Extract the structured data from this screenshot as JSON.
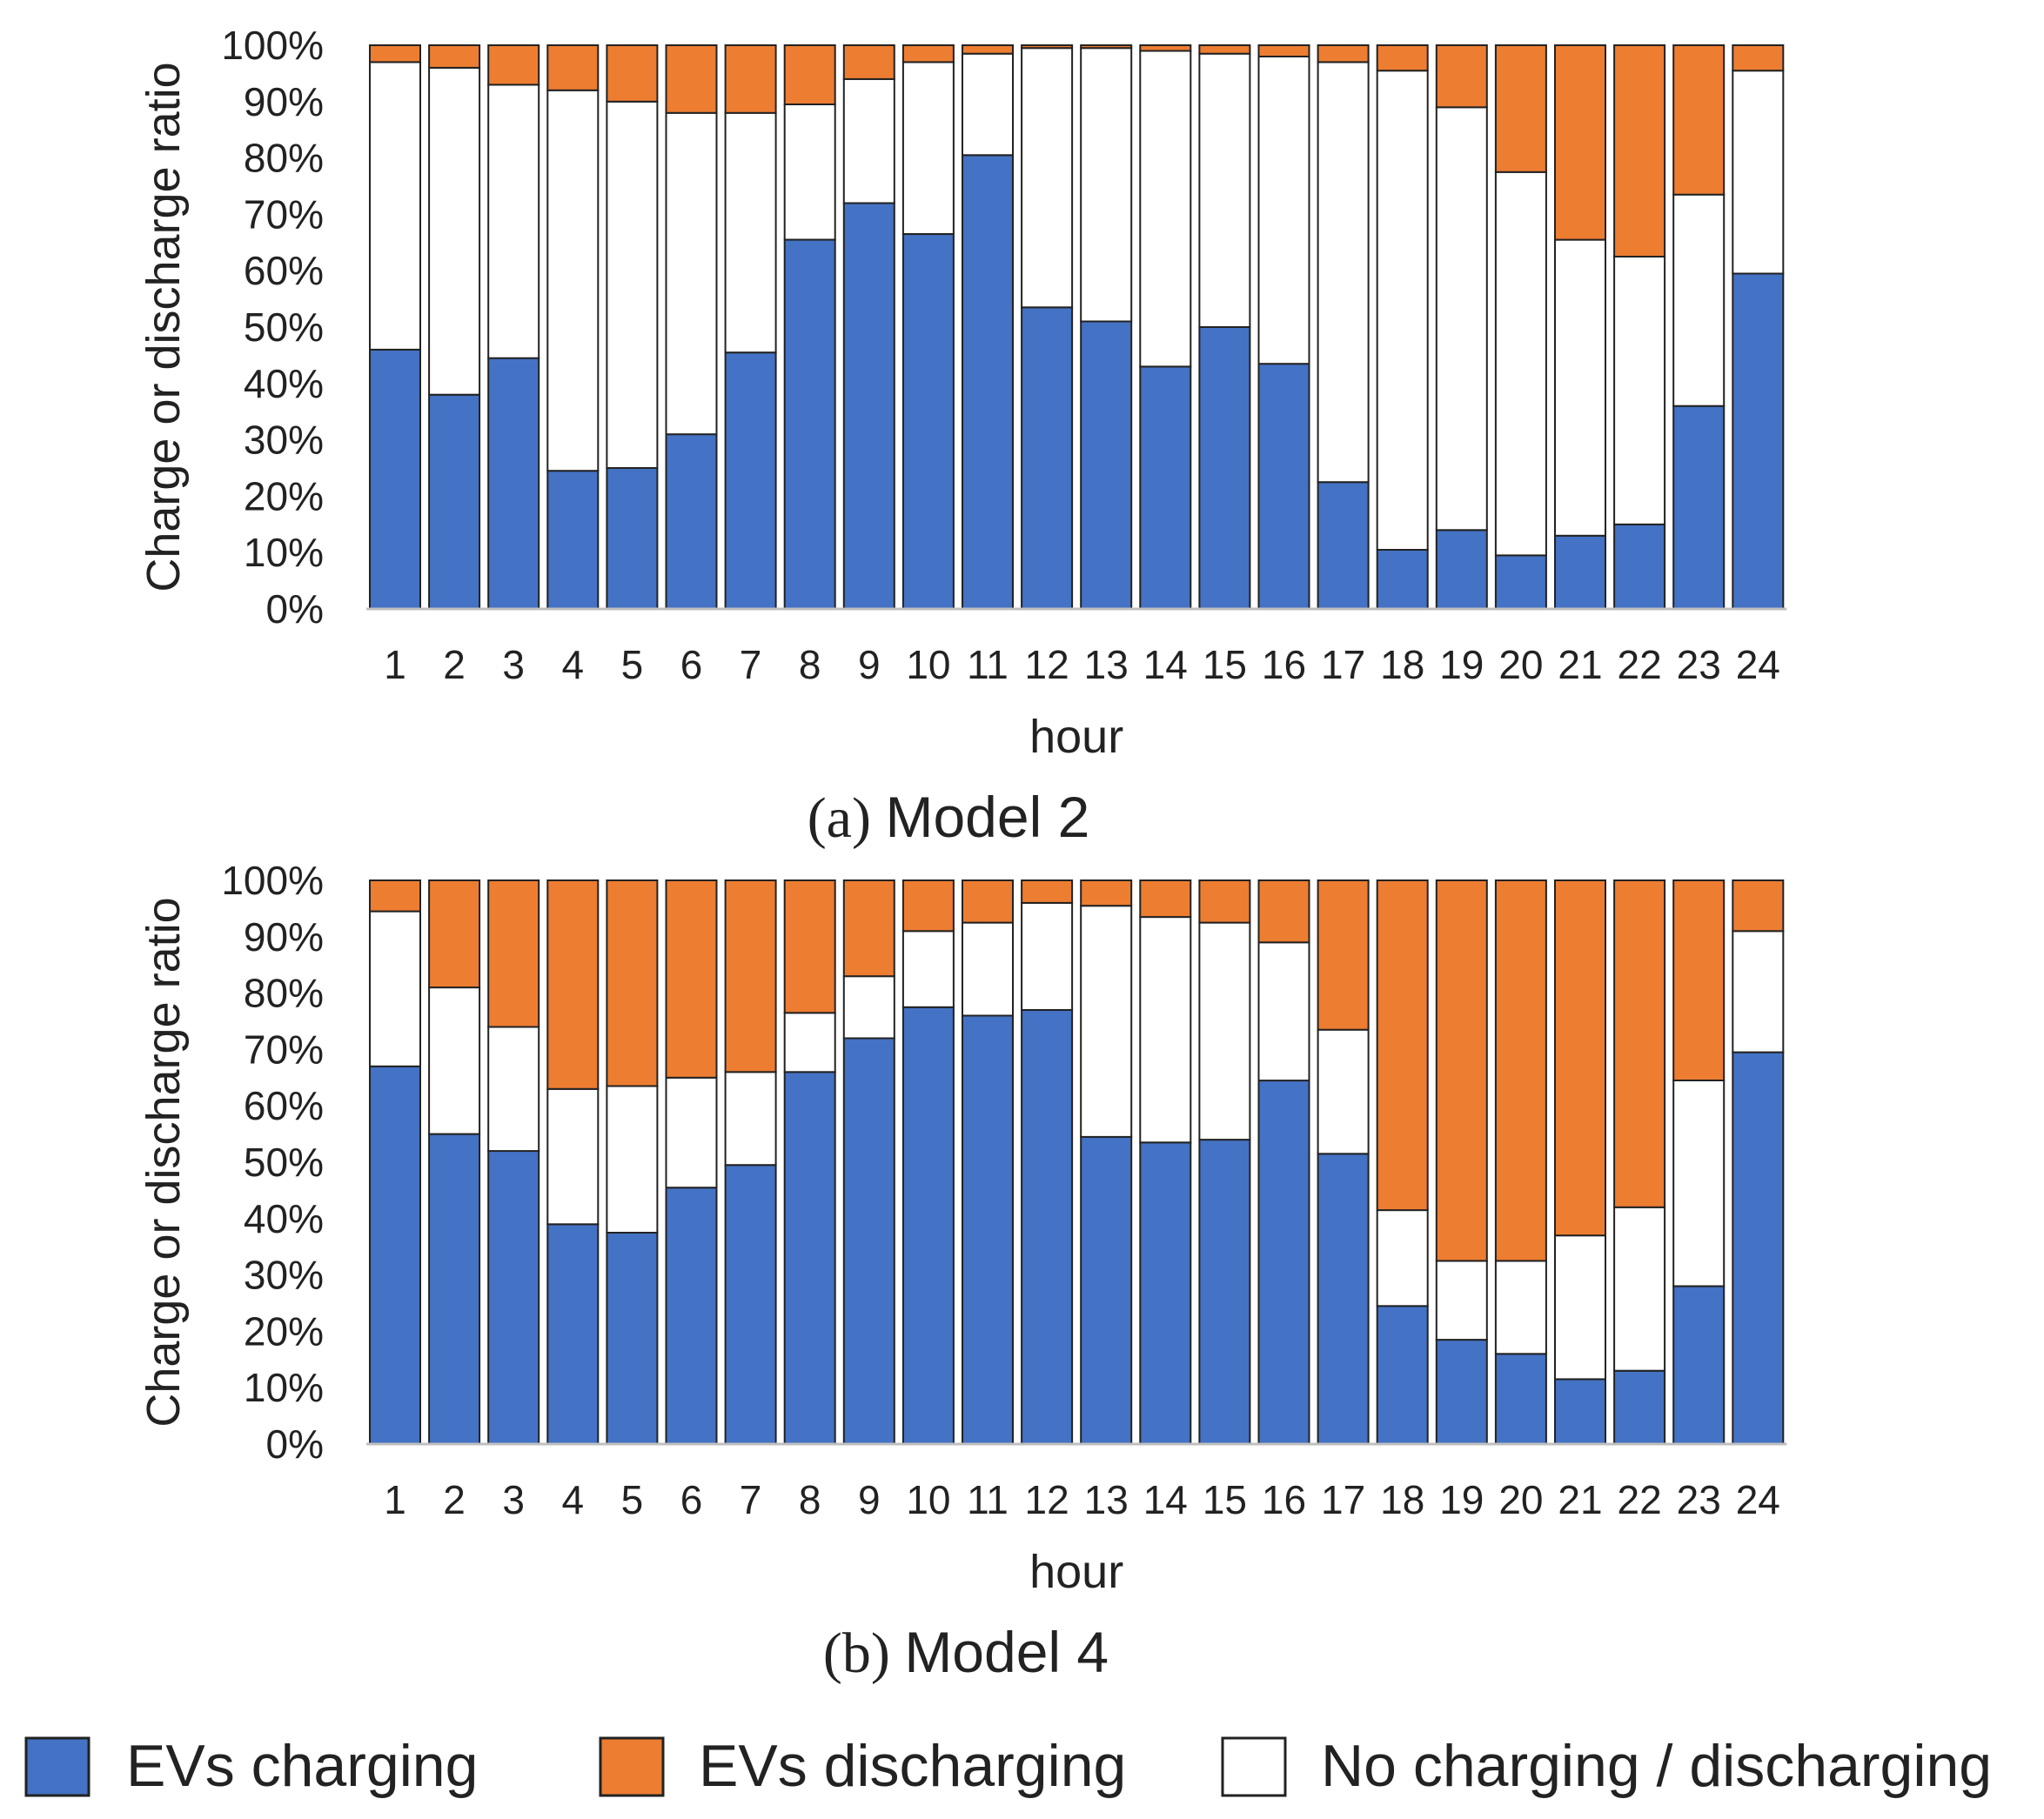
{
  "legend": {
    "items": [
      {
        "key": "charging",
        "label": "EVs charging",
        "color": "#4472C4"
      },
      {
        "key": "discharging",
        "label": "EVs discharging",
        "color": "#ED7D31"
      },
      {
        "key": "idle",
        "label": "No charging / discharging",
        "color": "#FFFFFF"
      }
    ]
  },
  "chart_data": [
    {
      "type": "bar",
      "stacked": true,
      "caption_prefix": "(a)",
      "caption": "Model 2",
      "xlabel": "hour",
      "ylabel": "Charge or discharge ratio",
      "ylim": [
        0,
        100
      ],
      "y_ticks": [
        "0%",
        "10%",
        "20%",
        "30%",
        "40%",
        "50%",
        "60%",
        "70%",
        "80%",
        "90%",
        "100%"
      ],
      "categories": [
        "1",
        "2",
        "3",
        "4",
        "5",
        "6",
        "7",
        "8",
        "9",
        "10",
        "11",
        "12",
        "13",
        "14",
        "15",
        "16",
        "17",
        "18",
        "19",
        "20",
        "21",
        "22",
        "23",
        "24"
      ],
      "series": [
        {
          "name": "EVs charging",
          "values": [
            46,
            38,
            44.5,
            24.5,
            25,
            31,
            45.5,
            65.5,
            72,
            66.5,
            80.5,
            53.5,
            51,
            43,
            50,
            43.5,
            22.5,
            10.5,
            14,
            9.5,
            13,
            15,
            36,
            59.5
          ]
        },
        {
          "name": "No charging / discharging",
          "values": [
            51,
            58,
            48.5,
            67.5,
            65,
            57,
            42.5,
            24,
            22,
            30.5,
            18,
            46,
            48.5,
            56,
            48.5,
            54.5,
            74.5,
            85,
            75,
            68,
            52.5,
            47.5,
            37.5,
            36
          ]
        },
        {
          "name": "EVs discharging",
          "values": [
            3,
            4,
            7,
            8,
            10,
            12,
            12,
            10.5,
            6,
            3,
            1.5,
            0.5,
            0.5,
            1,
            1.5,
            2,
            3,
            4.5,
            11,
            22.5,
            34.5,
            37.5,
            26.5,
            4.5
          ]
        }
      ]
    },
    {
      "type": "bar",
      "stacked": true,
      "caption_prefix": "(b)",
      "caption": "Model 4",
      "xlabel": "hour",
      "ylabel": "Charge or discharge ratio",
      "ylim": [
        0,
        100
      ],
      "y_ticks": [
        "0%",
        "10%",
        "20%",
        "30%",
        "40%",
        "50%",
        "60%",
        "70%",
        "80%",
        "90%",
        "100%"
      ],
      "categories": [
        "1",
        "2",
        "3",
        "4",
        "5",
        "6",
        "7",
        "8",
        "9",
        "10",
        "11",
        "12",
        "13",
        "14",
        "15",
        "16",
        "17",
        "18",
        "19",
        "20",
        "21",
        "22",
        "23",
        "24"
      ],
      "series": [
        {
          "name": "EVs charging",
          "values": [
            67,
            55,
            52,
            39,
            37.5,
            45.5,
            49.5,
            66,
            72,
            77.5,
            76,
            77,
            54.5,
            53.5,
            54,
            64.5,
            51.5,
            24.5,
            18.5,
            16,
            11.5,
            13,
            28,
            69.5
          ]
        },
        {
          "name": "No charging / discharging",
          "values": [
            27.5,
            26,
            22,
            24,
            26,
            19.5,
            16.5,
            10.5,
            11,
            13.5,
            16.5,
            19,
            41,
            40,
            38.5,
            24.5,
            22,
            17,
            14,
            16.5,
            25.5,
            29,
            36.5,
            21.5
          ]
        },
        {
          "name": "EVs discharging",
          "values": [
            5.5,
            19,
            26,
            37,
            36.5,
            35,
            34,
            23.5,
            17,
            9,
            7.5,
            4,
            4.5,
            6.5,
            7.5,
            11,
            26.5,
            58.5,
            67.5,
            67.5,
            63,
            58,
            35.5,
            9
          ]
        }
      ]
    }
  ]
}
